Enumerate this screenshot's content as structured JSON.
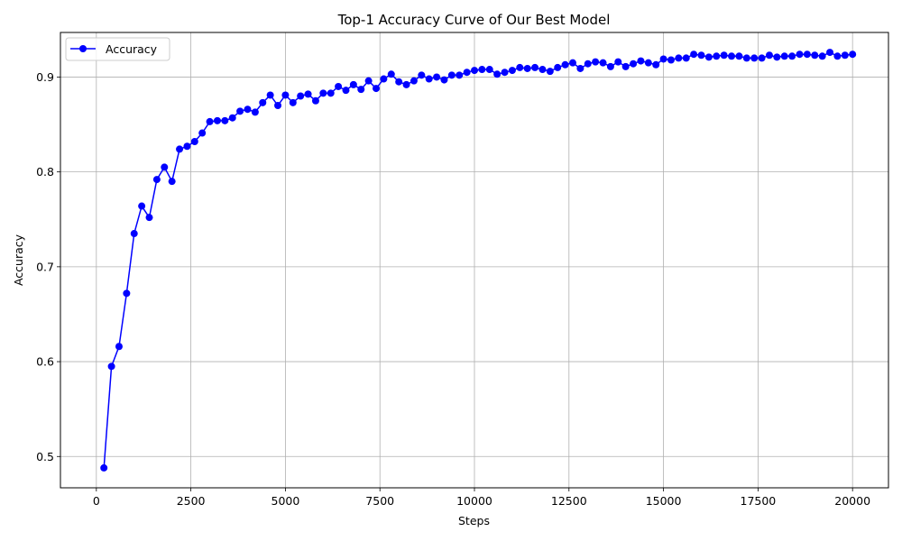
{
  "chart_data": {
    "type": "line",
    "title": "Top-1 Accuracy Curve of Our Best Model",
    "xlabel": "Steps",
    "ylabel": "Accuracy",
    "xlim": [
      -950,
      20950
    ],
    "ylim": [
      0.467,
      0.947
    ],
    "xticks": [
      0,
      2500,
      5000,
      7500,
      10000,
      12500,
      15000,
      17500,
      20000
    ],
    "yticks": [
      0.5,
      0.6,
      0.7,
      0.8,
      0.9
    ],
    "grid": true,
    "legend_position": "top-left",
    "series": [
      {
        "name": "Accuracy",
        "color": "#0000ff",
        "marker": "circle",
        "x": [
          200,
          400,
          600,
          800,
          1000,
          1200,
          1400,
          1600,
          1800,
          2000,
          2200,
          2400,
          2600,
          2800,
          3000,
          3200,
          3400,
          3600,
          3800,
          4000,
          4200,
          4400,
          4600,
          4800,
          5000,
          5200,
          5400,
          5600,
          5800,
          6000,
          6200,
          6400,
          6600,
          6800,
          7000,
          7200,
          7400,
          7600,
          7800,
          8000,
          8200,
          8400,
          8600,
          8800,
          9000,
          9200,
          9400,
          9600,
          9800,
          10000,
          10200,
          10400,
          10600,
          10800,
          11000,
          11200,
          11400,
          11600,
          11800,
          12000,
          12200,
          12400,
          12600,
          12800,
          13000,
          13200,
          13400,
          13600,
          13800,
          14000,
          14200,
          14400,
          14600,
          14800,
          15000,
          15200,
          15400,
          15600,
          15800,
          16000,
          16200,
          16400,
          16600,
          16800,
          17000,
          17200,
          17400,
          17600,
          17800,
          18000,
          18200,
          18400,
          18600,
          18800,
          19000,
          19200,
          19400,
          19600,
          19800,
          20000
        ],
        "y": [
          0.488,
          0.595,
          0.616,
          0.672,
          0.735,
          0.764,
          0.752,
          0.792,
          0.805,
          0.79,
          0.824,
          0.827,
          0.832,
          0.841,
          0.853,
          0.854,
          0.854,
          0.857,
          0.864,
          0.866,
          0.863,
          0.873,
          0.881,
          0.87,
          0.881,
          0.873,
          0.88,
          0.882,
          0.875,
          0.883,
          0.883,
          0.89,
          0.886,
          0.892,
          0.887,
          0.896,
          0.888,
          0.898,
          0.903,
          0.895,
          0.892,
          0.896,
          0.902,
          0.898,
          0.9,
          0.897,
          0.902,
          0.902,
          0.905,
          0.907,
          0.908,
          0.908,
          0.903,
          0.905,
          0.907,
          0.91,
          0.909,
          0.91,
          0.908,
          0.906,
          0.91,
          0.913,
          0.915,
          0.909,
          0.914,
          0.916,
          0.915,
          0.911,
          0.916,
          0.911,
          0.914,
          0.917,
          0.915,
          0.913,
          0.919,
          0.918,
          0.92,
          0.92,
          0.924,
          0.923,
          0.921,
          0.922,
          0.923,
          0.922,
          0.922,
          0.92,
          0.92,
          0.92,
          0.923,
          0.921,
          0.922,
          0.922,
          0.924,
          0.924,
          0.923,
          0.922,
          0.926,
          0.922,
          0.923,
          0.924
        ]
      }
    ]
  }
}
